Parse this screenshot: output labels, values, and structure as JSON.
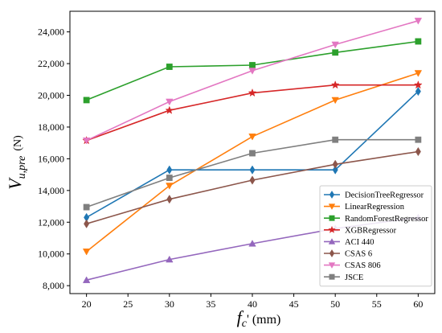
{
  "chart_data": {
    "type": "line",
    "title": "",
    "xlabel": {
      "main": "f",
      "sub": "c",
      "rest": "' (mm)"
    },
    "ylabel": {
      "main": "V",
      "sub": "u,pre",
      "unit": "(N)"
    },
    "x": [
      20,
      30,
      40,
      50,
      60
    ],
    "xlim": [
      18,
      62
    ],
    "ylim": [
      7500,
      25300
    ],
    "xticks": [
      20,
      25,
      30,
      35,
      40,
      45,
      50,
      55,
      60
    ],
    "yticks": [
      8000,
      10000,
      12000,
      14000,
      16000,
      18000,
      20000,
      22000,
      24000
    ],
    "ytick_labels": [
      "8,000",
      "10,000",
      "12,000",
      "14,000",
      "16,000",
      "18,000",
      "20,000",
      "22,000",
      "24,000"
    ],
    "grid": false,
    "legend_position": "bottom-right",
    "series": [
      {
        "name": "DecisionTreeRegressor",
        "color": "#1f77b4",
        "marker": "diamond",
        "values": [
          12300,
          15300,
          15300,
          15300,
          20250
        ]
      },
      {
        "name": "LinearRegression",
        "color": "#ff7f0e",
        "marker": "triangle-down",
        "values": [
          10150,
          14300,
          17400,
          19700,
          21400
        ]
      },
      {
        "name": "RandomForestRegressor",
        "color": "#2ca02c",
        "marker": "square",
        "values": [
          19700,
          21800,
          21900,
          22700,
          23400
        ]
      },
      {
        "name": "XGBRegressor",
        "color": "#d62728",
        "marker": "star",
        "values": [
          17150,
          19050,
          20150,
          20650,
          20650
        ]
      },
      {
        "name": "ACI 440",
        "color": "#9467bd",
        "marker": "triangle-up",
        "values": [
          8350,
          9650,
          10650,
          11600,
          12300
        ]
      },
      {
        "name": "CSAS 6",
        "color": "#8c564b",
        "marker": "diamond",
        "values": [
          11900,
          13450,
          14650,
          15650,
          16450
        ]
      },
      {
        "name": "CSAS 806",
        "color": "#e377c2",
        "marker": "triangle-down",
        "values": [
          17150,
          19600,
          21550,
          23200,
          24700
        ]
      },
      {
        "name": "JSCE",
        "color": "#7f7f7f",
        "marker": "square",
        "values": [
          12950,
          14800,
          16350,
          17200,
          17200
        ]
      }
    ]
  }
}
